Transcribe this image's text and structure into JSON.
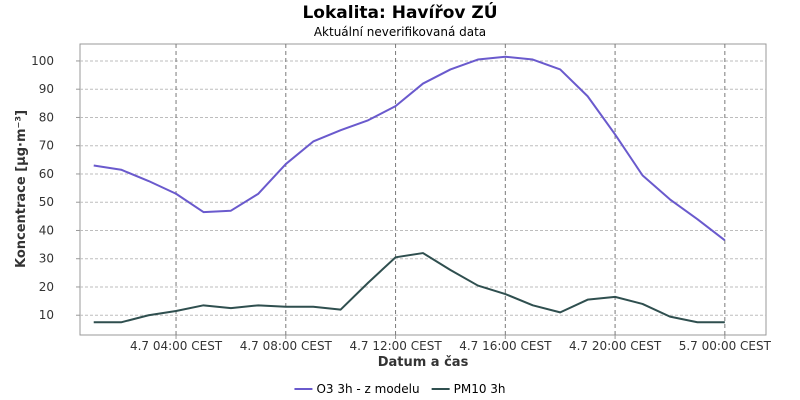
{
  "chart_data": {
    "type": "line",
    "title": "Lokalita: Havířov ZÚ",
    "subtitle": "Aktuální neverifikovaná data",
    "xlabel": "Datum a čas",
    "ylabel": "Koncentrace [µg·m⁻³]",
    "x": [
      "4.7 01:00",
      "4.7 02:00",
      "4.7 03:00",
      "4.7 04:00",
      "4.7 05:00",
      "4.7 06:00",
      "4.7 07:00",
      "4.7 08:00",
      "4.7 09:00",
      "4.7 10:00",
      "4.7 11:00",
      "4.7 12:00",
      "4.7 13:00",
      "4.7 14:00",
      "4.7 15:00",
      "4.7 16:00",
      "4.7 17:00",
      "4.7 18:00",
      "4.7 19:00",
      "4.7 20:00",
      "4.7 21:00",
      "4.7 22:00",
      "4.7 23:00",
      "5.7 00:00"
    ],
    "xlim": [
      "4.7 00:30",
      "5.7 01:30"
    ],
    "ylim": [
      3,
      106
    ],
    "x_ticks": [
      {
        "at": "4.7 04:00",
        "label": "4.7 04:00 CEST"
      },
      {
        "at": "4.7 08:00",
        "label": "4.7 08:00 CEST"
      },
      {
        "at": "4.7 12:00",
        "label": "4.7 12:00 CEST"
      },
      {
        "at": "4.7 16:00",
        "label": "4.7 16:00 CEST"
      },
      {
        "at": "4.7 20:00",
        "label": "4.7 20:00 CEST"
      },
      {
        "at": "5.7 00:00",
        "label": "5.7 00:00 CEST"
      }
    ],
    "y_ticks": [
      10,
      20,
      30,
      40,
      50,
      60,
      70,
      80,
      90,
      100
    ],
    "grid": true,
    "legend": "bottom-center",
    "series": [
      {
        "name": "O3 3h - z modelu",
        "color": "#6a5acd",
        "values": [
          63,
          61.5,
          57.5,
          53,
          46.5,
          47,
          53,
          63.5,
          71.5,
          75.5,
          79,
          84,
          92,
          97,
          100.5,
          101.5,
          100.5,
          97,
          87.5,
          74,
          59.5,
          51,
          44,
          36.5
        ]
      },
      {
        "name": "PM10 3h",
        "color": "#2f4f4f",
        "values": [
          7.5,
          7.5,
          10,
          11.5,
          13.5,
          12.5,
          13.5,
          13,
          13,
          12,
          21.5,
          30.5,
          32,
          26,
          20.5,
          17.5,
          13.5,
          11,
          15.5,
          16.5,
          14,
          9.5,
          7.5,
          7.5
        ]
      }
    ]
  }
}
